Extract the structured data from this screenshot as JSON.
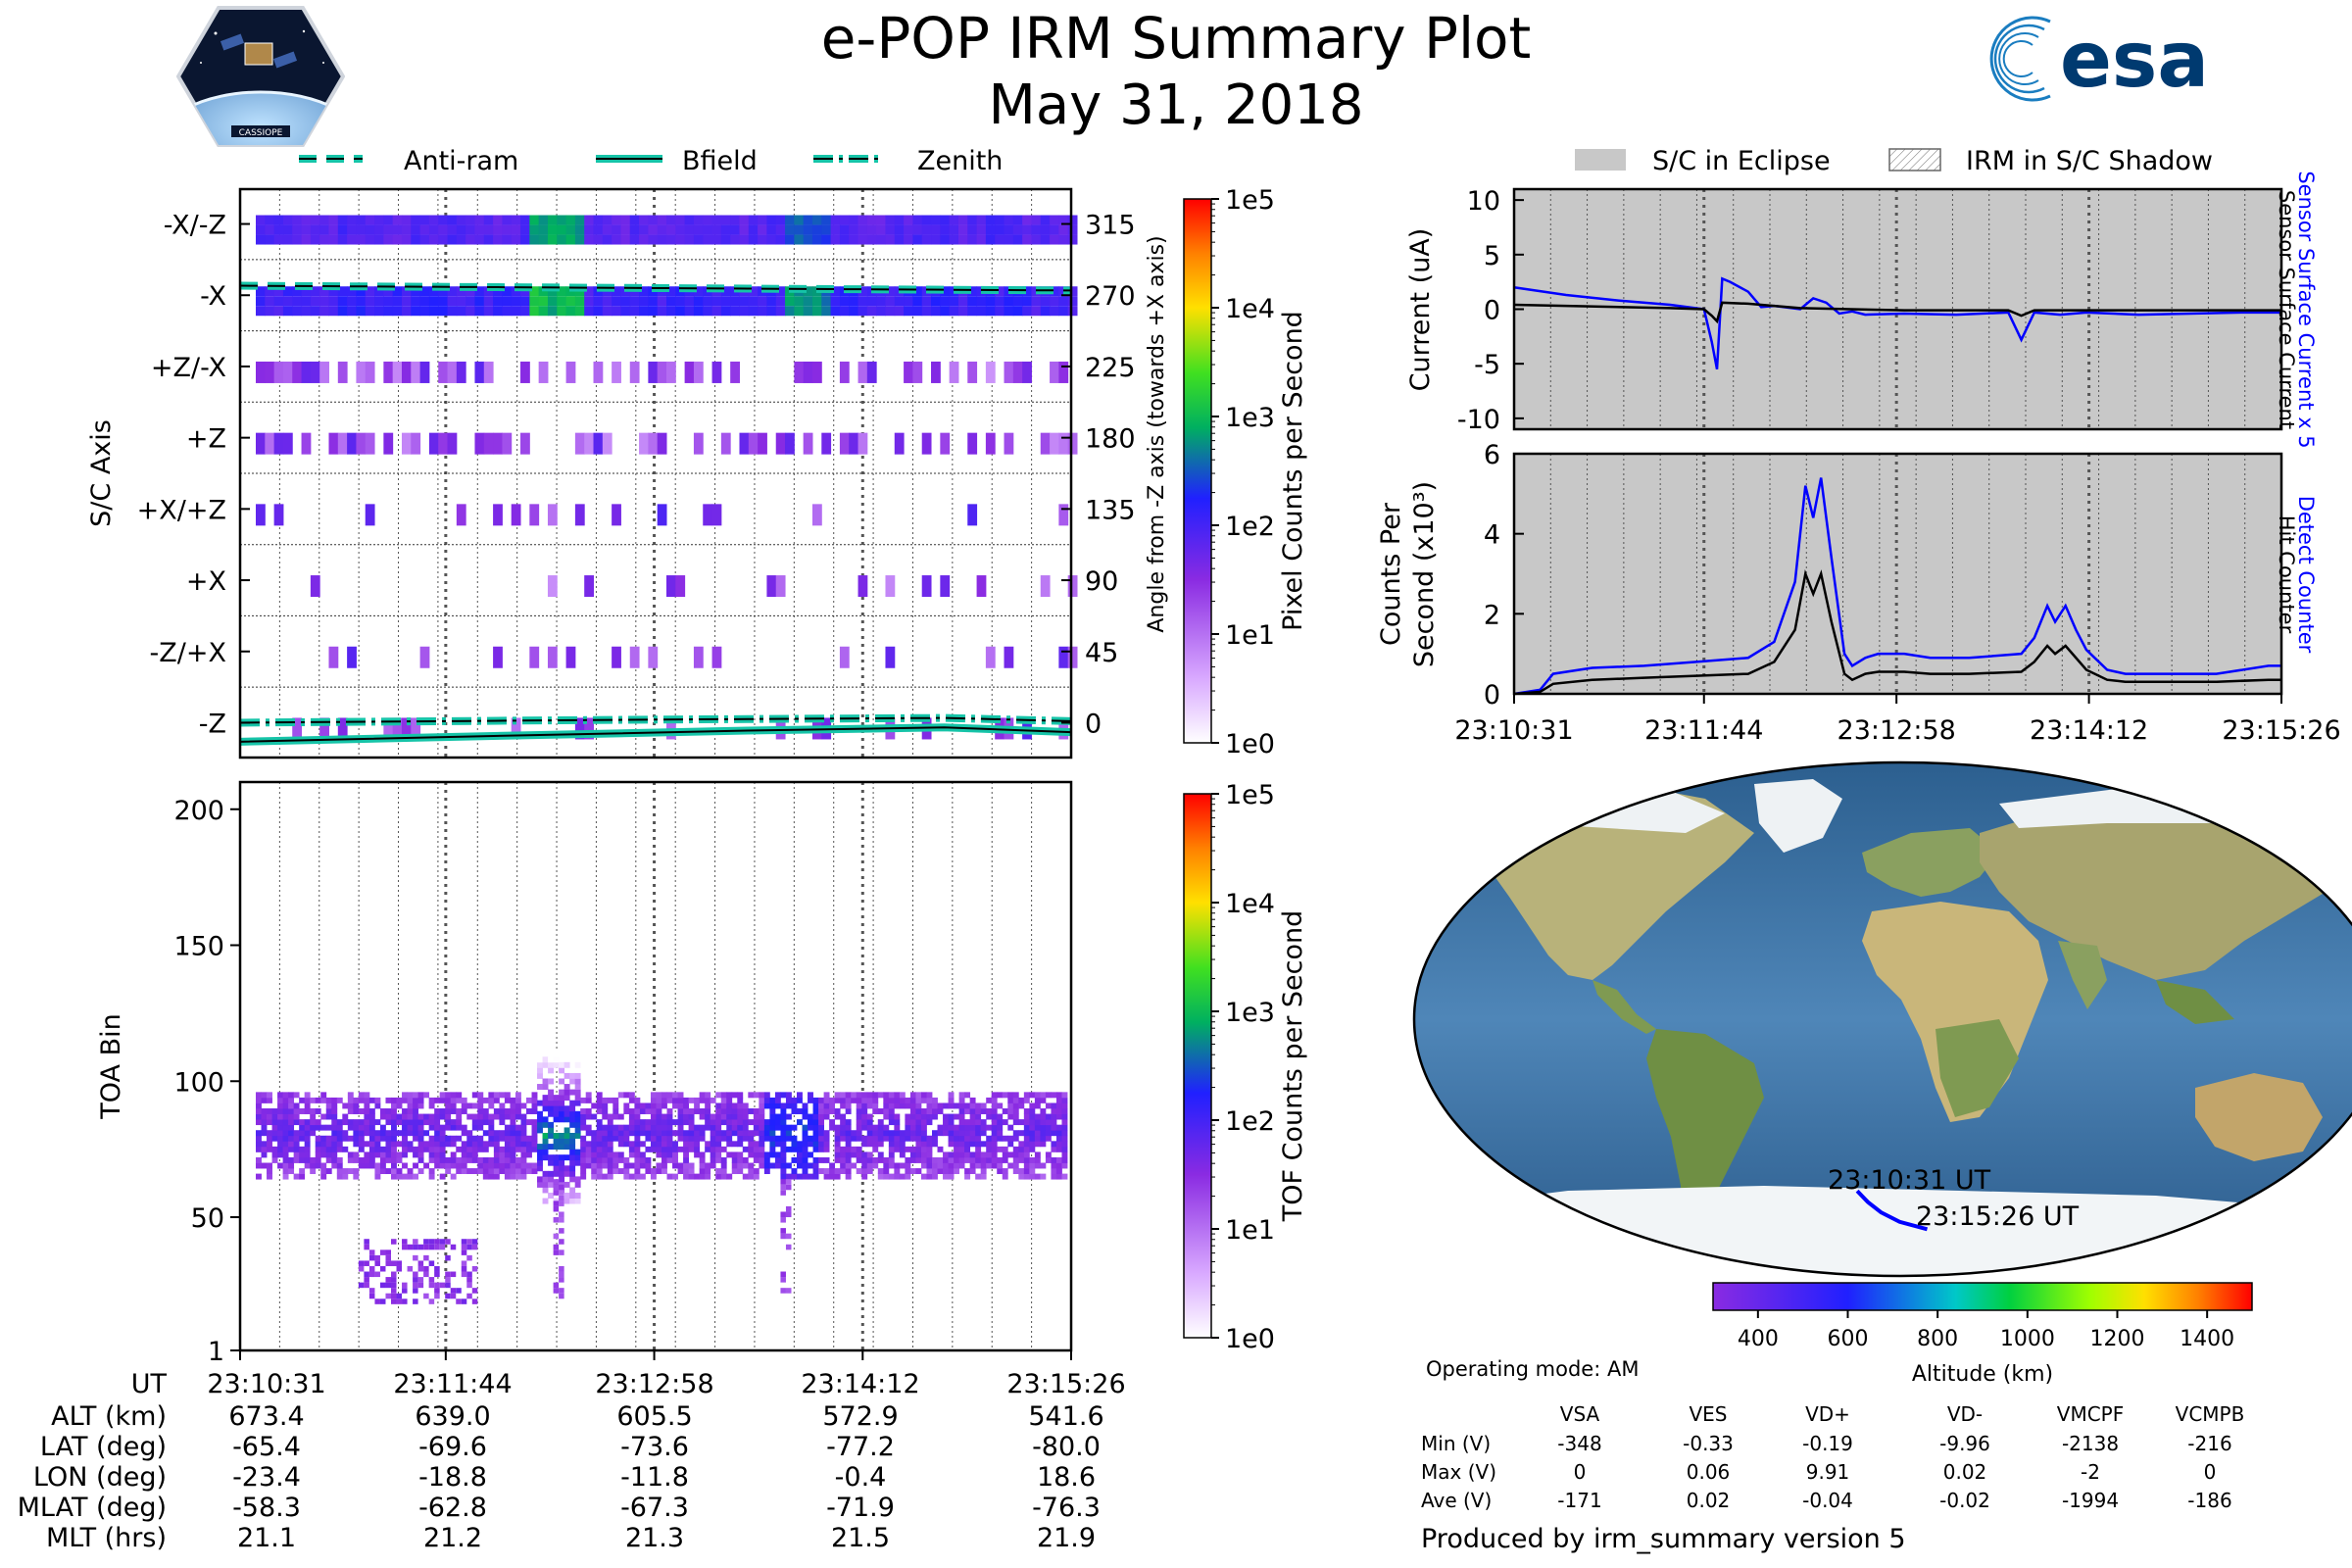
{
  "header": {
    "title": "e-POP IRM Summary Plot",
    "date": "May 31, 2018",
    "badge_text": "CASSIOPE",
    "esa_text": "esa"
  },
  "colors": {
    "teal": "#16c4a8",
    "blue": "#0000ff",
    "eclipse_gray": "#c8c8c8",
    "black": "#000000"
  },
  "legend_top": [
    "Anti-ram",
    "Bfield",
    "Zenith"
  ],
  "legend_eclipse": [
    "S/C in Eclipse",
    "IRM in S/C Shadow"
  ],
  "chart_data": [
    {
      "id": "sc_axis",
      "type": "heatmap",
      "ylabel": "S/C Axis",
      "ylabel_right": "Angle from -Z axis (towards +X axis)",
      "y_ticks_left": [
        "-X/-Z",
        "-X",
        "+Z/-X",
        "+Z",
        "+X/+Z",
        "+X",
        "-Z/+X",
        "-Z"
      ],
      "y_ticks_right": [
        "315",
        "270",
        "225",
        "180",
        "135",
        "90",
        "45",
        "0"
      ],
      "y_values": [
        315,
        270,
        225,
        180,
        135,
        90,
        45,
        0
      ],
      "ylim": [
        -22,
        337
      ],
      "xlim": [
        0,
        295
      ],
      "colorbar": {
        "label": "Pixel Counts per Second",
        "ticks": [
          "1e5",
          "1e4",
          "1e3",
          "1e2",
          "1e1",
          "1e0"
        ],
        "scale": "log"
      },
      "bands": [
        {
          "angle": 315,
          "level": 0.45
        },
        {
          "angle": 270,
          "level": 0.5
        },
        {
          "angle": 225,
          "level": 0.15
        },
        {
          "angle": 180,
          "level": 0.12
        },
        {
          "angle": 135,
          "level": 0.04
        },
        {
          "angle": 90,
          "level": 0.04
        },
        {
          "angle": 45,
          "level": 0.04
        },
        {
          "angle": 0,
          "level": 0.06
        }
      ],
      "series": [
        {
          "name": "Anti-ram",
          "style": "dashed",
          "x": [
            0,
            295
          ],
          "y": [
            276,
            273
          ]
        },
        {
          "name": "Zenith",
          "style": "dashdot",
          "x": [
            0,
            150,
            250,
            295
          ],
          "y": [
            0,
            2,
            3,
            1
          ]
        },
        {
          "name": "Bfield",
          "style": "solid",
          "x": [
            0,
            100,
            180,
            250,
            295
          ],
          "y": [
            -12,
            -8,
            -5,
            -3,
            -6
          ]
        }
      ]
    },
    {
      "id": "toa",
      "type": "heatmap",
      "ylabel": "TOA Bin",
      "y_ticks": [
        "200",
        "150",
        "100",
        "50",
        "1"
      ],
      "y_tick_values": [
        200,
        150,
        100,
        50,
        1
      ],
      "ylim": [
        1,
        210
      ],
      "xlim": [
        0,
        295
      ],
      "colorbar": {
        "label": "TOF Counts per Second",
        "ticks": [
          "1e5",
          "1e4",
          "1e3",
          "1e2",
          "1e1",
          "1e0"
        ],
        "scale": "log"
      },
      "x_tick_labels": [
        "23:10:31",
        "23:11:44",
        "23:12:58",
        "23:14:12",
        "23:15:26"
      ],
      "x_tick_values": [
        0,
        73,
        147,
        221,
        295
      ]
    },
    {
      "id": "current",
      "type": "line",
      "ylabel": "Current (uA)",
      "right_labels": [
        "Sensor Surface Current x 5",
        "Sensor Surface Current"
      ],
      "y_ticks": [
        "10",
        "5",
        "0",
        "-5",
        "-10"
      ],
      "y_tick_values": [
        10,
        5,
        0,
        -5,
        -10
      ],
      "ylim": [
        -11,
        11
      ],
      "xlim": [
        0,
        295
      ],
      "series": [
        {
          "name": "Sensor Surface Current x 5",
          "x": [
            0,
            20,
            40,
            60,
            73,
            76,
            78,
            80,
            83,
            90,
            95,
            100,
            110,
            115,
            120,
            125,
            130,
            135,
            150,
            170,
            190,
            195,
            200,
            210,
            220,
            240,
            260,
            280,
            295
          ],
          "y": [
            2,
            1.3,
            0.8,
            0.4,
            0,
            -3,
            -5.5,
            2.8,
            2.5,
            1.6,
            0.2,
            0.3,
            0,
            1,
            0.6,
            -0.4,
            -0.2,
            -0.5,
            -0.4,
            -0.5,
            -0.3,
            -2.8,
            -0.3,
            -0.5,
            -0.3,
            -0.5,
            -0.4,
            -0.3,
            -0.3
          ]
        },
        {
          "name": "Sensor Surface Current",
          "x": [
            0,
            60,
            73,
            76,
            78,
            80,
            90,
            110,
            150,
            190,
            195,
            200,
            295
          ],
          "y": [
            0.4,
            0.1,
            0,
            -0.6,
            -1.1,
            0.6,
            0.5,
            0.1,
            -0.1,
            -0.1,
            -0.6,
            -0.1,
            -0.1
          ]
        }
      ]
    },
    {
      "id": "counts",
      "type": "line",
      "ylabel": "Counts Per Second (x10³)",
      "right_labels": [
        "Detect Counter",
        "Hit Counter"
      ],
      "y_ticks": [
        "6",
        "4",
        "2",
        "0"
      ],
      "y_tick_values": [
        6,
        4,
        2,
        0
      ],
      "ylim": [
        0,
        6
      ],
      "xlim": [
        0,
        295
      ],
      "x_tick_labels": [
        "23:10:31",
        "23:11:44",
        "23:12:58",
        "23:14:12",
        "23:15:26"
      ],
      "x_tick_values": [
        0,
        73,
        147,
        221,
        295
      ],
      "series": [
        {
          "name": "Detect Counter",
          "x": [
            0,
            10,
            15,
            30,
            50,
            70,
            90,
            100,
            108,
            112,
            115,
            118,
            122,
            127,
            130,
            135,
            140,
            150,
            160,
            175,
            195,
            200,
            205,
            208,
            212,
            216,
            220,
            228,
            235,
            250,
            270,
            290,
            295
          ],
          "y": [
            0,
            0.1,
            0.5,
            0.65,
            0.7,
            0.8,
            0.9,
            1.3,
            2.8,
            5.2,
            4.4,
            5.4,
            3.4,
            1,
            0.7,
            0.9,
            1,
            1,
            0.9,
            0.9,
            1,
            1.4,
            2.2,
            1.8,
            2.2,
            1.6,
            1.1,
            0.6,
            0.5,
            0.5,
            0.5,
            0.7,
            0.7
          ]
        },
        {
          "name": "Hit Counter",
          "x": [
            0,
            10,
            15,
            30,
            50,
            70,
            90,
            100,
            108,
            112,
            115,
            118,
            122,
            127,
            130,
            135,
            140,
            150,
            160,
            175,
            195,
            200,
            205,
            208,
            212,
            216,
            220,
            228,
            235,
            250,
            270,
            290,
            295
          ],
          "y": [
            0,
            0.05,
            0.25,
            0.35,
            0.4,
            0.45,
            0.5,
            0.8,
            1.6,
            3,
            2.5,
            3,
            1.8,
            0.5,
            0.35,
            0.5,
            0.55,
            0.55,
            0.5,
            0.5,
            0.55,
            0.8,
            1.2,
            1,
            1.2,
            0.9,
            0.6,
            0.35,
            0.3,
            0.3,
            0.3,
            0.35,
            0.35
          ]
        }
      ]
    }
  ],
  "map": {
    "start_label": "23:10:31 UT",
    "end_label": "23:15:26 UT",
    "track_lonlat": [
      [
        -23.4,
        -65.4
      ],
      [
        -18.8,
        -69.6
      ],
      [
        -11.8,
        -73.6
      ],
      [
        -0.4,
        -77.2
      ],
      [
        18.6,
        -80.0
      ]
    ],
    "colorbar_label": "Altitude (km)",
    "colorbar_ticks": [
      "400",
      "600",
      "800",
      "1000",
      "1200",
      "1400"
    ],
    "colorbar_tick_values": [
      400,
      600,
      800,
      1000,
      1200,
      1400
    ],
    "colorbar_range": [
      300,
      1500
    ]
  },
  "ephemeris": {
    "labels": [
      "UT",
      "ALT (km)",
      "LAT (deg)",
      "LON (deg)",
      "MLAT (deg)",
      "MLT (hrs)"
    ],
    "times": [
      "23:10:31",
      "23:11:44",
      "23:12:58",
      "23:14:12",
      "23:15:26"
    ],
    "rows": [
      [
        "673.4",
        "639.0",
        "605.5",
        "572.9",
        "541.6"
      ],
      [
        "-65.4",
        "-69.6",
        "-73.6",
        "-77.2",
        "-80.0"
      ],
      [
        "-23.4",
        "-18.8",
        "-11.8",
        "-0.4",
        "18.6"
      ],
      [
        "-58.3",
        "-62.8",
        "-67.3",
        "-71.9",
        "-76.3"
      ],
      [
        "21.1",
        "21.2",
        "21.3",
        "21.5",
        "21.9"
      ]
    ]
  },
  "voltage": {
    "mode": "Operating mode: AM",
    "columns": [
      "VSA",
      "VES",
      "VD+",
      "VD-",
      "VMCPF",
      "VCMPB"
    ],
    "rows": [
      {
        "label": "Min (V)",
        "values": [
          "-348",
          "-0.33",
          "-0.19",
          "-9.96",
          "-2138",
          "-216"
        ]
      },
      {
        "label": "Max (V)",
        "values": [
          "0",
          "0.06",
          "9.91",
          "0.02",
          "-2",
          "0"
        ]
      },
      {
        "label": "Ave (V)",
        "values": [
          "-171",
          "0.02",
          "-0.04",
          "-0.02",
          "-1994",
          "-186"
        ]
      }
    ]
  },
  "footer": "Produced by irm_summary version 5"
}
